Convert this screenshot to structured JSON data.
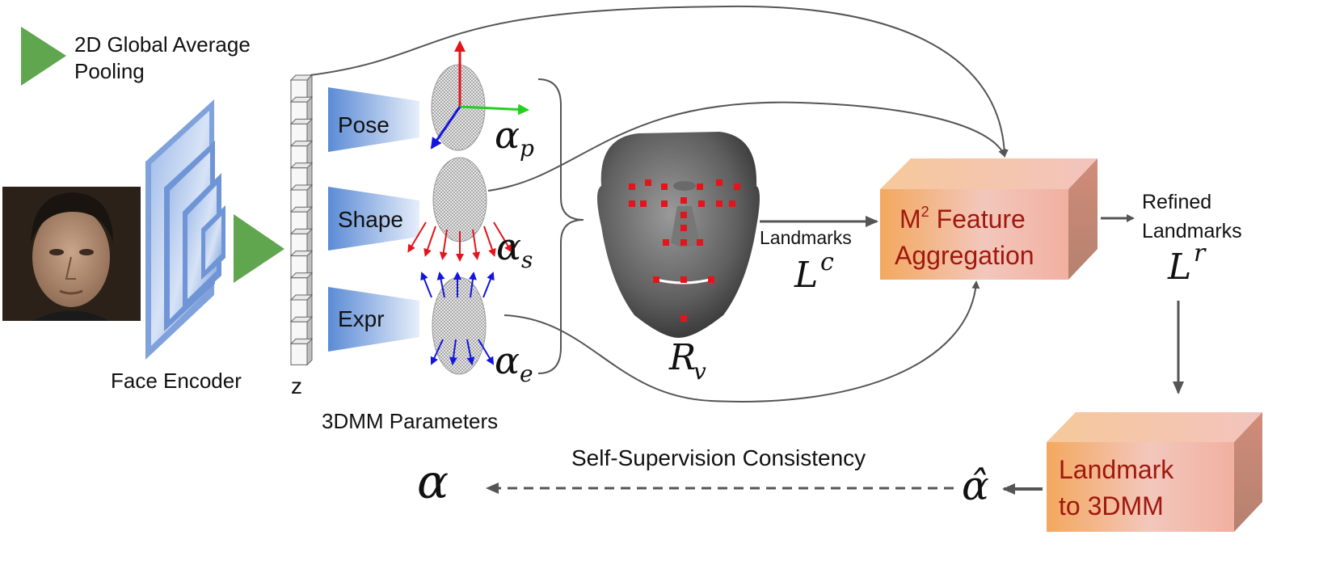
{
  "legend": {
    "symbol": "green-triangle",
    "line1": "2D Global Average",
    "line2": "Pooling"
  },
  "encoder": {
    "label": "Face Encoder"
  },
  "latent": {
    "label": "z"
  },
  "heads": {
    "pose": "Pose",
    "shape": "Shape",
    "expr": "Expr",
    "group_label": "3DMM Parameters"
  },
  "params": {
    "alpha": "α",
    "p_sub": "p",
    "s_sub": "s",
    "e_sub": "e"
  },
  "mesh": {
    "symbol": "R",
    "sub": "v"
  },
  "landmarks": {
    "label": "Landmarks",
    "symbol": "L",
    "sup": "c"
  },
  "aggregation": {
    "m": "M",
    "sup": "2",
    "line1_rest": " Feature",
    "line2": "Aggregation"
  },
  "refined": {
    "line1": "Refined",
    "line2": "Landmarks",
    "symbol": "L",
    "sup": "r"
  },
  "l2m": {
    "line1": "Landmark",
    "line2": "to 3DMM"
  },
  "consistency": {
    "label": "Self-Supervision Consistency",
    "alpha": "α",
    "alpha_hat": "α̂"
  },
  "colors": {
    "green": "#5FA64F",
    "head_blue_light": "#DCE6F7",
    "head_blue_dark": "#5B8BD6",
    "box_orange": "#F2A75C",
    "box_pink": "#F3C7C0",
    "box_text": "#A0180E",
    "arrow_gray": "#555555",
    "landmark_red": "#E3141B"
  }
}
